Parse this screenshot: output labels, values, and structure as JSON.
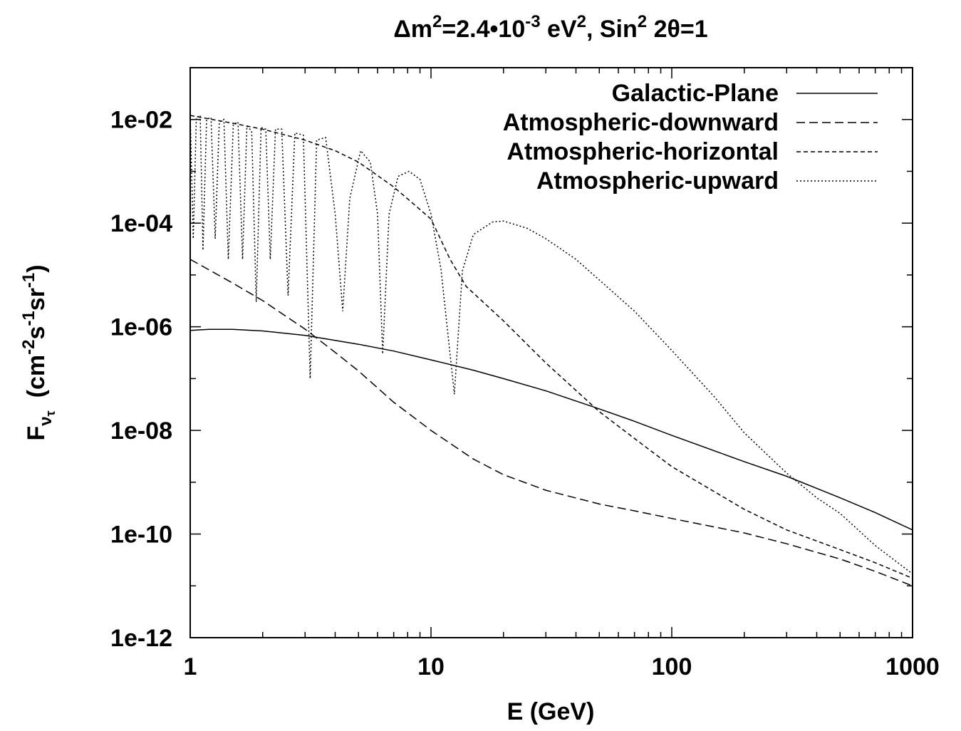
{
  "chart_data": {
    "type": "line",
    "title": {
      "delta": "Δ",
      "m": "m",
      "sup2": "2",
      "value": "=2.4•10",
      "exp": "-3",
      "ev": " eV",
      "sup2b": "2",
      "sin": ", Sin",
      "sup2c": "2",
      "rest": " 2θ=1"
    },
    "xlabel": "E (GeV)",
    "ylabel": {
      "F": "F",
      "nu": "ν",
      "tau": "τ",
      "units_open": "(cm",
      "e1": "-2",
      "s": "s",
      "e2": "-1",
      "sr": "sr",
      "e3": "-1",
      "units_close": ")"
    },
    "x_scale": "log",
    "y_scale": "log",
    "xlim": [
      1,
      1000
    ],
    "ylim": [
      1e-12,
      0.1
    ],
    "x_ticks": [
      {
        "value": 1,
        "label": "1"
      },
      {
        "value": 10,
        "label": "10"
      },
      {
        "value": 100,
        "label": "100"
      },
      {
        "value": 1000,
        "label": "1000"
      }
    ],
    "y_ticks": [
      {
        "value": 0.01,
        "label": "1e-02"
      },
      {
        "value": 0.0001,
        "label": "1e-04"
      },
      {
        "value": 1e-06,
        "label": "1e-06"
      },
      {
        "value": 1e-08,
        "label": "1e-08"
      },
      {
        "value": 1e-10,
        "label": "1e-10"
      },
      {
        "value": 1e-12,
        "label": "1e-12"
      }
    ],
    "grid": false,
    "legend_position": "top-right",
    "series": [
      {
        "name": "Galactic-Plane",
        "dash": "none",
        "points": [
          [
            1,
            8.5e-07
          ],
          [
            1.2,
            8.9e-07
          ],
          [
            1.5,
            8.9e-07
          ],
          [
            2,
            8.3e-07
          ],
          [
            3,
            6.8e-07
          ],
          [
            5,
            4.6e-07
          ],
          [
            7,
            3.4e-07
          ],
          [
            10,
            2.3e-07
          ],
          [
            15,
            1.45e-07
          ],
          [
            20,
            1e-07
          ],
          [
            30,
            5.8e-08
          ],
          [
            50,
            2.6e-08
          ],
          [
            70,
            1.5e-08
          ],
          [
            100,
            8e-09
          ],
          [
            200,
            2.5e-09
          ],
          [
            300,
            1.3e-09
          ],
          [
            500,
            5e-10
          ],
          [
            700,
            2.6e-10
          ],
          [
            1000,
            1.2e-10
          ]
        ]
      },
      {
        "name": "Atmospheric-downward",
        "dash": "12,6",
        "points": [
          [
            1,
            2e-05
          ],
          [
            1.5,
            7e-06
          ],
          [
            2,
            3.2e-06
          ],
          [
            3,
            9e-07
          ],
          [
            4,
            3.2e-07
          ],
          [
            5,
            1.4e-07
          ],
          [
            7,
            3.5e-08
          ],
          [
            10,
            1e-08
          ],
          [
            15,
            2.8e-09
          ],
          [
            20,
            1.4e-09
          ],
          [
            30,
            7e-10
          ],
          [
            50,
            3.8e-10
          ],
          [
            70,
            2.8e-10
          ],
          [
            100,
            2e-10
          ],
          [
            200,
            1.05e-10
          ],
          [
            300,
            6.5e-11
          ],
          [
            500,
            3.3e-11
          ],
          [
            700,
            1.9e-11
          ],
          [
            1000,
            1e-11
          ]
        ]
      },
      {
        "name": "Atmospheric-horizontal",
        "dash": "6,4",
        "points": [
          [
            1,
            0.012
          ],
          [
            1.5,
            0.0085
          ],
          [
            2,
            0.0065
          ],
          [
            3,
            0.004
          ],
          [
            4,
            0.0025
          ],
          [
            5,
            0.0015
          ],
          [
            7,
            0.0005
          ],
          [
            10,
            0.00012
          ],
          [
            12,
            2e-05
          ],
          [
            14,
            6e-06
          ],
          [
            20,
            1.3e-06
          ],
          [
            30,
            2e-07
          ],
          [
            50,
            2.3e-08
          ],
          [
            70,
            7e-09
          ],
          [
            100,
            2e-09
          ],
          [
            200,
            3e-10
          ],
          [
            300,
            1.2e-10
          ],
          [
            500,
            5e-11
          ],
          [
            700,
            2.8e-11
          ],
          [
            1000,
            1.4e-11
          ]
        ]
      },
      {
        "name": "Atmospheric-upward",
        "dash": "2,3",
        "points": [
          [
            1,
            0.012
          ],
          [
            1.03,
            5e-05
          ],
          [
            1.06,
            0.011
          ],
          [
            1.1,
            0.012
          ],
          [
            1.13,
            3e-05
          ],
          [
            1.17,
            0.01
          ],
          [
            1.22,
            0.011
          ],
          [
            1.27,
            5e-05
          ],
          [
            1.32,
            0.009
          ],
          [
            1.38,
            0.01
          ],
          [
            1.44,
            2e-05
          ],
          [
            1.51,
            0.008
          ],
          [
            1.58,
            0.009
          ],
          [
            1.65,
            2e-05
          ],
          [
            1.72,
            0.0075
          ],
          [
            1.8,
            0.006
          ],
          [
            1.88,
            3e-06
          ],
          [
            1.97,
            0.007
          ],
          [
            2.06,
            0.0065
          ],
          [
            2.15,
            2e-05
          ],
          [
            2.26,
            0.0065
          ],
          [
            2.4,
            0.0065
          ],
          [
            2.55,
            4e-06
          ],
          [
            2.72,
            0.0055
          ],
          [
            2.95,
            0.005
          ],
          [
            3.15,
            1e-07
          ],
          [
            3.35,
            0.004
          ],
          [
            3.65,
            0.0045
          ],
          [
            4.0,
            0.00015
          ],
          [
            4.3,
            2e-06
          ],
          [
            4.6,
            0.0003
          ],
          [
            5.1,
            0.0025
          ],
          [
            5.6,
            0.0015
          ],
          [
            6.0,
            0.00015
          ],
          [
            6.3,
            3e-07
          ],
          [
            6.7,
            0.00015
          ],
          [
            7.3,
            0.0008
          ],
          [
            8.1,
            0.001
          ],
          [
            9.0,
            0.0007
          ],
          [
            10,
            0.00015
          ],
          [
            11,
            1.3e-05
          ],
          [
            12.5,
            5e-08
          ],
          [
            13.5,
            1.2e-05
          ],
          [
            15,
            6e-05
          ],
          [
            18,
            0.000105
          ],
          [
            20,
            0.00011
          ],
          [
            25,
            8e-05
          ],
          [
            30,
            5e-05
          ],
          [
            40,
            2e-05
          ],
          [
            50,
            8e-06
          ],
          [
            70,
            2e-06
          ],
          [
            100,
            3.5e-07
          ],
          [
            150,
            4.5e-08
          ],
          [
            200,
            9e-09
          ],
          [
            300,
            1.5e-09
          ],
          [
            400,
            5e-10
          ],
          [
            500,
            2.5e-10
          ],
          [
            700,
            6e-11
          ],
          [
            1000,
            1.7e-11
          ]
        ]
      }
    ]
  }
}
